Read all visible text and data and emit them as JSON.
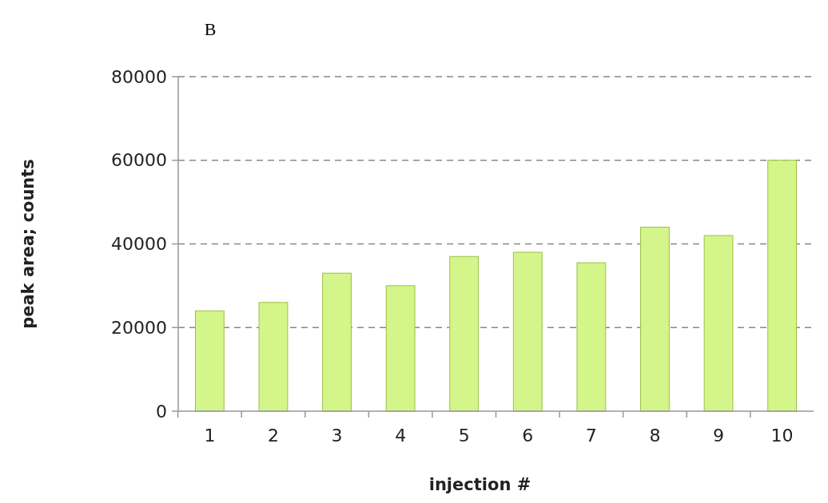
{
  "chart_data": {
    "type": "bar",
    "title": "B",
    "xlabel": "injection #",
    "ylabel": "peak area; counts",
    "categories": [
      "1",
      "2",
      "3",
      "4",
      "5",
      "6",
      "7",
      "8",
      "9",
      "10"
    ],
    "values": [
      24000,
      26000,
      33000,
      30000,
      37000,
      38000,
      35500,
      44000,
      42000,
      60000
    ],
    "color": "#d4f58a",
    "ylim": [
      0,
      80000
    ],
    "yticks": [
      0,
      20000,
      40000,
      60000,
      80000
    ],
    "grid": "y"
  }
}
